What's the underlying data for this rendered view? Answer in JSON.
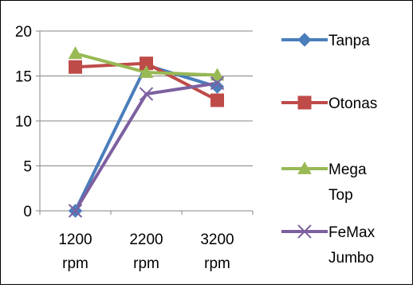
{
  "chart_data": {
    "type": "line",
    "categories": [
      [
        "1200",
        "rpm"
      ],
      [
        "2200",
        "rpm"
      ],
      [
        "3200",
        "rpm"
      ]
    ],
    "y_ticks": [
      "0",
      "5",
      "10",
      "15",
      "20"
    ],
    "ylim": [
      0,
      20
    ],
    "grid": true,
    "legend_position": "right",
    "series": [
      {
        "name_lines": [
          "Tanpa"
        ],
        "values": [
          0,
          16.2,
          13.8
        ],
        "color": "#4a7ebb",
        "marker": "diamond"
      },
      {
        "name_lines": [
          "Otonas"
        ],
        "values": [
          16.0,
          16.4,
          12.3
        ],
        "color": "#be4b48",
        "marker": "square"
      },
      {
        "name_lines": [
          "Mega",
          "Top"
        ],
        "values": [
          17.5,
          15.4,
          15.1
        ],
        "color": "#98b954",
        "marker": "triangle"
      },
      {
        "name_lines": [
          "FeMax",
          "Jumbo"
        ],
        "values": [
          0,
          13.0,
          14.2
        ],
        "color": "#7d60a0",
        "marker": "x"
      }
    ]
  }
}
